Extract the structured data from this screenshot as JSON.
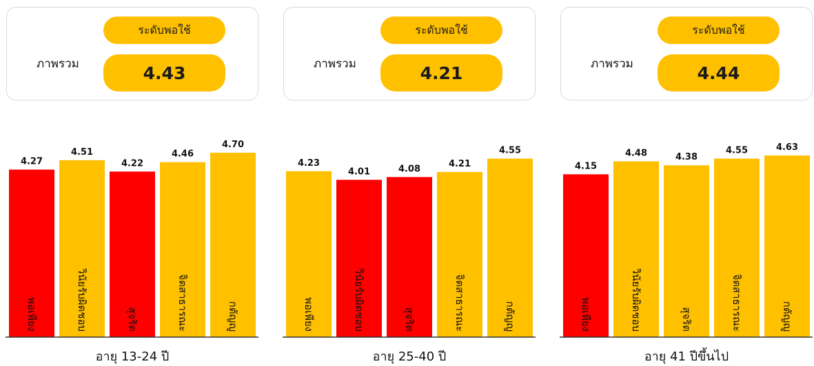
{
  "summary_label": "ภาพรวม",
  "colors": {
    "high": "#ffc000",
    "low": "#ff0000"
  },
  "cards": [
    {
      "level": "ระดับพอใช้",
      "score": "4.43"
    },
    {
      "level": "ระดับพอใช้",
      "score": "4.21"
    },
    {
      "level": "ระดับพอใช้",
      "score": "4.44"
    }
  ],
  "chart_data": [
    {
      "type": "bar",
      "group_label": "อายุ 13-24 ปี",
      "categories": [
        "พอเพียง",
        "วินัยรับผิดชอบ",
        "สุจริต",
        "จิตสาธารณะ",
        "กตัญญู"
      ],
      "values": [
        4.27,
        4.51,
        4.22,
        4.46,
        4.7
      ],
      "value_labels": [
        "4.27",
        "4.51",
        "4.22",
        "4.46",
        "4.70"
      ],
      "bar_colors": [
        "#ff0000",
        "#ffc000",
        "#ff0000",
        "#ffc000",
        "#ffc000"
      ],
      "ylim": [
        0,
        4.7
      ]
    },
    {
      "type": "bar",
      "group_label": "อายุ 25-40 ปี",
      "categories": [
        "พอเพียง",
        "วินัยรับผิดชอบ",
        "สุจริต",
        "จิตสาธารณะ",
        "กตัญญู"
      ],
      "values": [
        4.23,
        4.01,
        4.08,
        4.21,
        4.55
      ],
      "value_labels": [
        "4.23",
        "4.01",
        "4.08",
        "4.21",
        "4.55"
      ],
      "bar_colors": [
        "#ffc000",
        "#ff0000",
        "#ff0000",
        "#ffc000",
        "#ffc000"
      ],
      "ylim": [
        0,
        4.7
      ]
    },
    {
      "type": "bar",
      "group_label": "อายุ 41 ปีขึ้นไป",
      "categories": [
        "พอเพียง",
        "วินัยรับผิดชอบ",
        "สุจริต",
        "จิตสาธารณะ",
        "กตัญญู"
      ],
      "values": [
        4.15,
        4.48,
        4.38,
        4.55,
        4.63
      ],
      "value_labels": [
        "4.15",
        "4.48",
        "4.38",
        "4.55",
        "4.63"
      ],
      "bar_colors": [
        "#ff0000",
        "#ffc000",
        "#ffc000",
        "#ffc000",
        "#ffc000"
      ],
      "ylim": [
        0,
        4.7
      ]
    }
  ]
}
